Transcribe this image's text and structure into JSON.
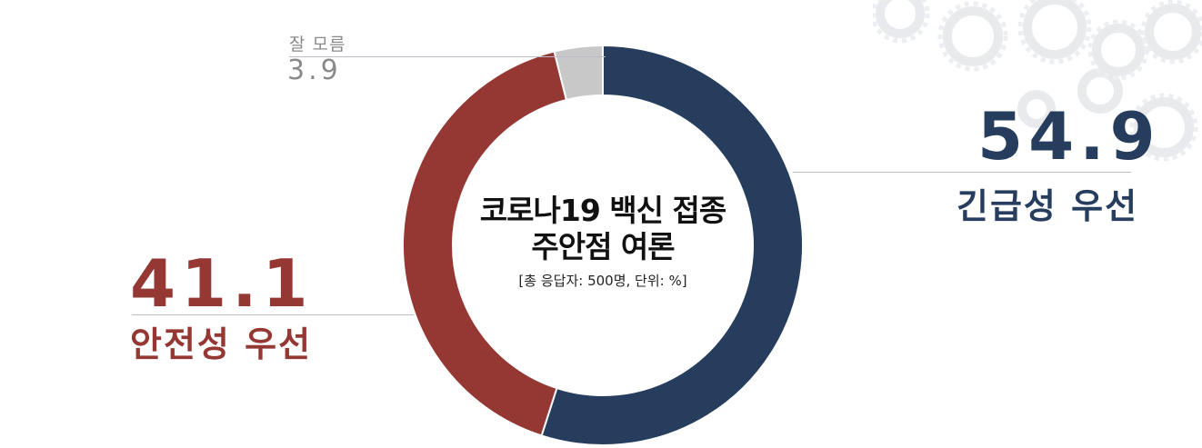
{
  "center": {
    "title_line1": "코로나19 백신 접종",
    "title_line2": "주안점 여론",
    "note": "[총 응답자: 500명, 단위: %]"
  },
  "labels": {
    "urgent_value": "54.9",
    "urgent_label": "긴급성 우선",
    "safety_value": "41.1",
    "safety_label": "안전성 우선",
    "unknown_value": "3.9",
    "unknown_label": "잘 모름"
  },
  "colors": {
    "urgent": "#263d5e",
    "safety": "#953733",
    "unknown": "#c8c8c8",
    "label_gray": "#8a8a8a"
  },
  "chart_data": {
    "type": "pie",
    "style": "donut",
    "title": "코로나19 백신 접종 주안점 여론",
    "subtitle": "[총 응답자: 500명, 단위: %]",
    "categories": [
      "긴급성 우선",
      "안전성 우선",
      "잘 모름"
    ],
    "values": [
      54.9,
      41.1,
      3.9
    ],
    "colors": [
      "#263d5e",
      "#953733",
      "#c8c8c8"
    ]
  }
}
